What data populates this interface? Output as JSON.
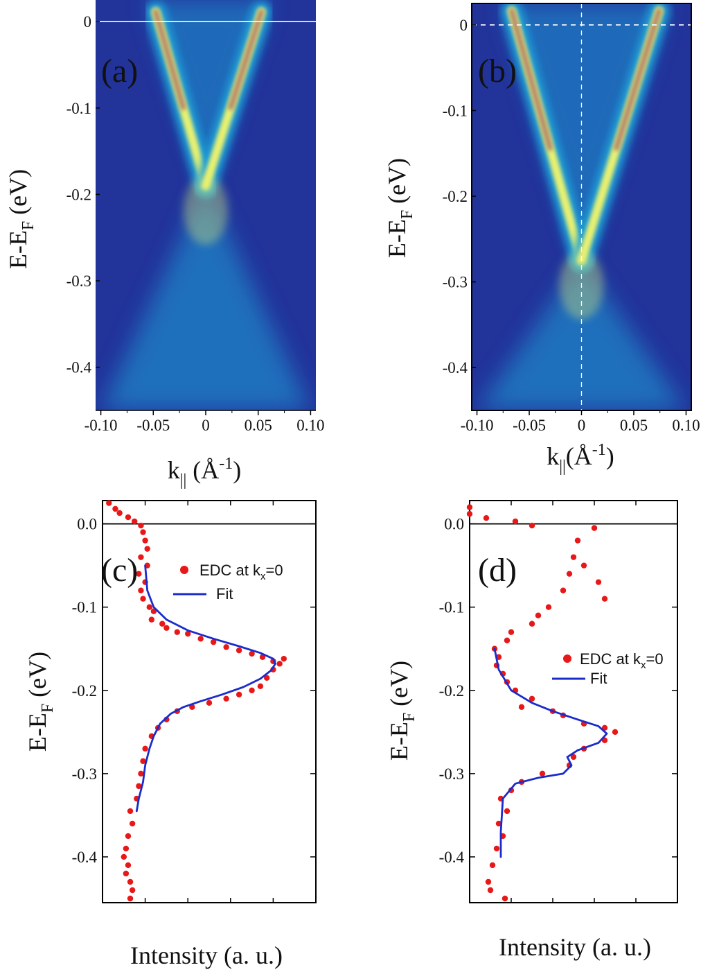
{
  "colors": {
    "map_background": "#22339a",
    "map_glow": "#1aa0d8",
    "map_band": "#e8f070",
    "map_peak": "#b07a6a",
    "data_points": "#e81818",
    "fit_line": "#1a2ccc"
  },
  "chart_data": [
    {
      "id": "a",
      "type": "heatmap",
      "panel_label": "(a)",
      "xlabel": "k∥ (Å⁻¹)",
      "ylabel": "E-EF (eV)",
      "xlim": [
        -0.105,
        0.105
      ],
      "ylim": [
        -0.45,
        0.025
      ],
      "xticks": [
        "-0.10",
        "-0.05",
        "0",
        "0.05",
        "0.10"
      ],
      "yticks": [
        "0",
        "-0.1",
        "-0.2",
        "-0.3",
        "-0.4"
      ],
      "fermi_level_line": "solid",
      "dirac_point_eV": -0.19,
      "upper_branch_k_at_EF": [
        -0.045,
        0.05
      ],
      "lower_cone_k_at_-0.45": [
        -0.1,
        0.1
      ]
    },
    {
      "id": "b",
      "type": "heatmap",
      "panel_label": "(b)",
      "xlabel": "k∥ (Å⁻¹)",
      "ylabel": "E-EF (eV)",
      "xlim": [
        -0.105,
        0.105
      ],
      "ylim": [
        -0.45,
        0.025
      ],
      "xticks": [
        "-0.10",
        "-0.05",
        "0",
        "0.05",
        "0.10"
      ],
      "yticks": [
        "0",
        "-0.1",
        "-0.2",
        "-0.3",
        "-0.4"
      ],
      "fermi_level_line": "dashed",
      "k0_line": "dashed",
      "dirac_point_eV": -0.275,
      "upper_branch_k_at_EF": [
        -0.063,
        0.07
      ],
      "lower_cone_k_at_-0.45": [
        -0.1,
        0.1
      ]
    },
    {
      "id": "c",
      "type": "scatter",
      "panel_label": "(c)",
      "xlabel": "Intensity (a. u.)",
      "ylabel": "E-EF (eV)",
      "ylim": [
        -0.455,
        0.028
      ],
      "xlim": [
        0,
        100
      ],
      "yticks": [
        "0.0",
        "-0.1",
        "-0.2",
        "-0.3",
        "-0.4"
      ],
      "legend": {
        "points": "EDC at kx=0",
        "line": "Fit",
        "position": "top-right"
      },
      "series": [
        {
          "name": "EDC at kx=0",
          "kind": "points",
          "points": [
            [
              3,
              0.025
            ],
            [
              6,
              0.018
            ],
            [
              8,
              0.013
            ],
            [
              12,
              0.008
            ],
            [
              15,
              0.003
            ],
            [
              18,
              -0.002
            ],
            [
              19,
              -0.01
            ],
            [
              20,
              -0.02
            ],
            [
              21,
              -0.03
            ],
            [
              18,
              -0.04
            ],
            [
              21,
              -0.05
            ],
            [
              17,
              -0.06
            ],
            [
              20,
              -0.07
            ],
            [
              18,
              -0.08
            ],
            [
              19,
              -0.09
            ],
            [
              22,
              -0.1
            ],
            [
              24,
              -0.105
            ],
            [
              23,
              -0.115
            ],
            [
              28,
              -0.12
            ],
            [
              30,
              -0.125
            ],
            [
              35,
              -0.13
            ],
            [
              40,
              -0.132
            ],
            [
              46,
              -0.138
            ],
            [
              52,
              -0.142
            ],
            [
              58,
              -0.148
            ],
            [
              64,
              -0.152
            ],
            [
              70,
              -0.156
            ],
            [
              75,
              -0.16
            ],
            [
              80,
              -0.165
            ],
            [
              83,
              -0.168
            ],
            [
              85,
              -0.162
            ],
            [
              80,
              -0.175
            ],
            [
              77,
              -0.185
            ],
            [
              74,
              -0.195
            ],
            [
              70,
              -0.2
            ],
            [
              64,
              -0.205
            ],
            [
              58,
              -0.21
            ],
            [
              50,
              -0.215
            ],
            [
              42,
              -0.22
            ],
            [
              35,
              -0.225
            ],
            [
              30,
              -0.235
            ],
            [
              26,
              -0.245
            ],
            [
              23,
              -0.255
            ],
            [
              20,
              -0.27
            ],
            [
              19,
              -0.285
            ],
            [
              18,
              -0.3
            ],
            [
              17,
              -0.315
            ],
            [
              16,
              -0.33
            ],
            [
              13,
              -0.345
            ],
            [
              14,
              -0.36
            ],
            [
              12,
              -0.375
            ],
            [
              11,
              -0.39
            ],
            [
              10,
              -0.4
            ],
            [
              12,
              -0.41
            ],
            [
              11,
              -0.42
            ],
            [
              13,
              -0.43
            ],
            [
              14,
              -0.44
            ],
            [
              13,
              -0.45
            ]
          ]
        },
        {
          "name": "Fit",
          "kind": "line",
          "points": [
            [
              20,
              -0.05
            ],
            [
              21,
              -0.08
            ],
            [
              24,
              -0.1
            ],
            [
              30,
              -0.115
            ],
            [
              40,
              -0.128
            ],
            [
              52,
              -0.138
            ],
            [
              64,
              -0.147
            ],
            [
              74,
              -0.155
            ],
            [
              80,
              -0.162
            ],
            [
              81,
              -0.168
            ],
            [
              79,
              -0.176
            ],
            [
              74,
              -0.186
            ],
            [
              66,
              -0.196
            ],
            [
              56,
              -0.205
            ],
            [
              46,
              -0.213
            ],
            [
              38,
              -0.22
            ],
            [
              32,
              -0.228
            ],
            [
              27,
              -0.24
            ],
            [
              24,
              -0.255
            ],
            [
              22,
              -0.27
            ],
            [
              20,
              -0.29
            ],
            [
              19,
              -0.31
            ],
            [
              17,
              -0.33
            ],
            [
              16,
              -0.345
            ]
          ]
        }
      ]
    },
    {
      "id": "d",
      "type": "scatter",
      "panel_label": "(d)",
      "xlabel": "Intensity (a. u.)",
      "ylabel": "E-EF (eV)",
      "ylim": [
        -0.455,
        0.028
      ],
      "xlim": [
        0,
        100
      ],
      "yticks": [
        "0.0",
        "-0.1",
        "-0.2",
        "-0.3",
        "-0.4"
      ],
      "legend": {
        "points": "EDC at kx=0",
        "line": "Fit",
        "position": "middle-right"
      },
      "series": [
        {
          "name": "EDC at kx=0",
          "kind": "points",
          "points": [
            [
              0,
              0.02
            ],
            [
              0,
              0.012
            ],
            [
              8,
              0.007
            ],
            [
              22,
              0.003
            ],
            [
              30,
              -0.002
            ],
            [
              60,
              -0.005
            ],
            [
              52,
              -0.02
            ],
            [
              50,
              -0.04
            ],
            [
              55,
              -0.05
            ],
            [
              48,
              -0.06
            ],
            [
              62,
              -0.07
            ],
            [
              45,
              -0.08
            ],
            [
              65,
              -0.09
            ],
            [
              38,
              -0.1
            ],
            [
              33,
              -0.11
            ],
            [
              30,
              -0.12
            ],
            [
              20,
              -0.13
            ],
            [
              18,
              -0.14
            ],
            [
              12,
              -0.15
            ],
            [
              14,
              -0.16
            ],
            [
              13,
              -0.17
            ],
            [
              16,
              -0.18
            ],
            [
              18,
              -0.19
            ],
            [
              22,
              -0.2
            ],
            [
              30,
              -0.21
            ],
            [
              25,
              -0.22
            ],
            [
              40,
              -0.225
            ],
            [
              45,
              -0.23
            ],
            [
              55,
              -0.24
            ],
            [
              65,
              -0.245
            ],
            [
              70,
              -0.25
            ],
            [
              65,
              -0.26
            ],
            [
              55,
              -0.27
            ],
            [
              50,
              -0.28
            ],
            [
              48,
              -0.29
            ],
            [
              35,
              -0.3
            ],
            [
              25,
              -0.31
            ],
            [
              20,
              -0.32
            ],
            [
              15,
              -0.33
            ],
            [
              18,
              -0.345
            ],
            [
              14,
              -0.36
            ],
            [
              16,
              -0.375
            ],
            [
              13,
              -0.39
            ],
            [
              11,
              -0.41
            ],
            [
              9,
              -0.43
            ],
            [
              10,
              -0.44
            ],
            [
              17,
              -0.45
            ]
          ]
        },
        {
          "name": "Fit",
          "kind": "line",
          "points": [
            [
              12,
              -0.15
            ],
            [
              14,
              -0.175
            ],
            [
              20,
              -0.2
            ],
            [
              30,
              -0.215
            ],
            [
              40,
              -0.225
            ],
            [
              52,
              -0.235
            ],
            [
              62,
              -0.243
            ],
            [
              66,
              -0.252
            ],
            [
              62,
              -0.263
            ],
            [
              52,
              -0.272
            ],
            [
              47,
              -0.28
            ],
            [
              49,
              -0.29
            ],
            [
              45,
              -0.3
            ],
            [
              33,
              -0.305
            ],
            [
              22,
              -0.312
            ],
            [
              16,
              -0.33
            ],
            [
              15,
              -0.37
            ],
            [
              15,
              -0.4
            ]
          ]
        }
      ]
    }
  ]
}
